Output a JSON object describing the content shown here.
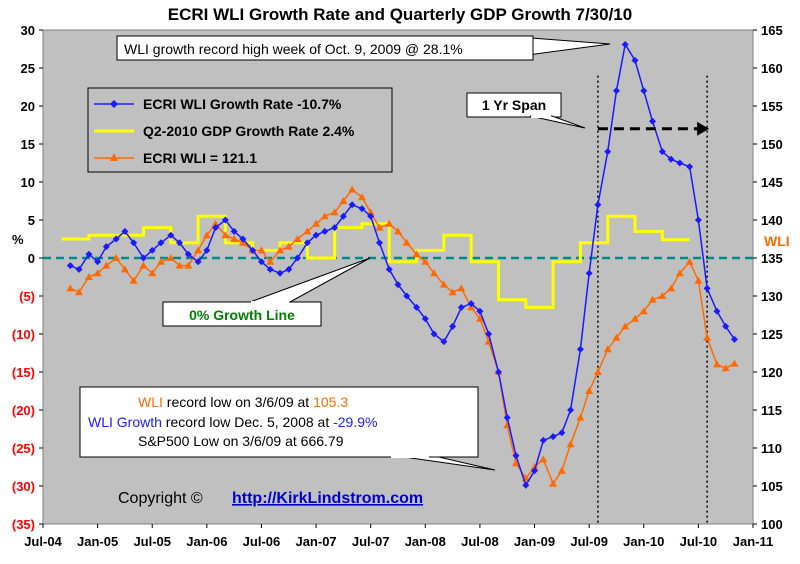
{
  "chart_data": {
    "type": "line",
    "title": "ECRI WLI Growth Rate and Quarterly GDP Growth  7/30/10",
    "ylabel_left": "%",
    "ylabel_right": "WLI",
    "x_ticks": [
      "Jul-04",
      "Jan-05",
      "Jul-05",
      "Jan-06",
      "Jul-06",
      "Jan-07",
      "Jul-07",
      "Jan-08",
      "Jul-08",
      "Jan-09",
      "Jul-09",
      "Jan-10",
      "Jul-10",
      "Jan-11"
    ],
    "xlim": [
      2004.5,
      2011.0
    ],
    "y_left_ticks": [
      "30",
      "25",
      "20",
      "15",
      "10",
      "5",
      "0",
      "(5)",
      "(10)",
      "(15)",
      "(20)",
      "(25)",
      "(30)",
      "(35)"
    ],
    "ylim_left": [
      -35,
      30
    ],
    "y_right_ticks": [
      "165",
      "160",
      "155",
      "150",
      "145",
      "140",
      "135",
      "130",
      "125",
      "120",
      "115",
      "110",
      "105",
      "100"
    ],
    "ylim_right": [
      100,
      165
    ],
    "grid": false,
    "legend_position": "top-left",
    "series": [
      {
        "name": "ECRI WLI Growth Rate -10.7%",
        "axis": "left",
        "color": "#1a1aff",
        "marker": "diamond",
        "points": [
          [
            2004.75,
            -1
          ],
          [
            2004.83,
            -1.5
          ],
          [
            2004.92,
            0.5
          ],
          [
            2005.0,
            -0.5
          ],
          [
            2005.08,
            1.5
          ],
          [
            2005.17,
            2.5
          ],
          [
            2005.25,
            3.5
          ],
          [
            2005.33,
            2
          ],
          [
            2005.42,
            0
          ],
          [
            2005.5,
            1
          ],
          [
            2005.58,
            2
          ],
          [
            2005.67,
            3
          ],
          [
            2005.75,
            2
          ],
          [
            2005.83,
            0.5
          ],
          [
            2005.92,
            -0.5
          ],
          [
            2006.0,
            1
          ],
          [
            2006.08,
            4
          ],
          [
            2006.17,
            5
          ],
          [
            2006.25,
            3.5
          ],
          [
            2006.33,
            2.5
          ],
          [
            2006.42,
            1
          ],
          [
            2006.5,
            -0.5
          ],
          [
            2006.58,
            -1.5
          ],
          [
            2006.67,
            -2
          ],
          [
            2006.75,
            -1.5
          ],
          [
            2006.83,
            0
          ],
          [
            2006.92,
            2
          ],
          [
            2007.0,
            3
          ],
          [
            2007.08,
            3.5
          ],
          [
            2007.17,
            4
          ],
          [
            2007.25,
            5.5
          ],
          [
            2007.33,
            7
          ],
          [
            2007.42,
            6.5
          ],
          [
            2007.5,
            5.5
          ],
          [
            2007.58,
            2
          ],
          [
            2007.67,
            -1.5
          ],
          [
            2007.75,
            -3.5
          ],
          [
            2007.83,
            -5
          ],
          [
            2007.92,
            -6.5
          ],
          [
            2008.0,
            -8
          ],
          [
            2008.08,
            -10
          ],
          [
            2008.17,
            -11
          ],
          [
            2008.25,
            -9
          ],
          [
            2008.33,
            -6.5
          ],
          [
            2008.42,
            -6
          ],
          [
            2008.5,
            -7
          ],
          [
            2008.58,
            -10
          ],
          [
            2008.67,
            -15
          ],
          [
            2008.75,
            -21
          ],
          [
            2008.83,
            -26
          ],
          [
            2008.92,
            -29.9
          ],
          [
            2009.0,
            -28
          ],
          [
            2009.08,
            -24
          ],
          [
            2009.17,
            -23.5
          ],
          [
            2009.25,
            -23
          ],
          [
            2009.33,
            -20
          ],
          [
            2009.42,
            -12
          ],
          [
            2009.5,
            -2
          ],
          [
            2009.58,
            7
          ],
          [
            2009.67,
            14
          ],
          [
            2009.75,
            22
          ],
          [
            2009.83,
            28.1
          ],
          [
            2009.92,
            26
          ],
          [
            2010.0,
            22
          ],
          [
            2010.08,
            18
          ],
          [
            2010.17,
            14
          ],
          [
            2010.25,
            13
          ],
          [
            2010.33,
            12.5
          ],
          [
            2010.42,
            12
          ],
          [
            2010.5,
            5
          ],
          [
            2010.58,
            -4
          ],
          [
            2010.67,
            -7
          ],
          [
            2010.75,
            -9
          ],
          [
            2010.83,
            -10.7
          ]
        ]
      },
      {
        "name": "Q2-2010 GDP Growth Rate 2.4%",
        "axis": "left",
        "color": "#ffff00",
        "points": [
          [
            2004.67,
            2.5
          ],
          [
            2004.92,
            2.5
          ],
          [
            2004.92,
            3
          ],
          [
            2005.42,
            3
          ],
          [
            2005.42,
            4
          ],
          [
            2005.67,
            4
          ],
          [
            2005.67,
            2
          ],
          [
            2005.92,
            2
          ],
          [
            2005.92,
            5.5
          ],
          [
            2006.17,
            5.5
          ],
          [
            2006.17,
            2
          ],
          [
            2006.42,
            2
          ],
          [
            2006.42,
            1
          ],
          [
            2006.67,
            1
          ],
          [
            2006.67,
            2
          ],
          [
            2006.92,
            2
          ],
          [
            2006.92,
            0
          ],
          [
            2007.17,
            0
          ],
          [
            2007.17,
            4
          ],
          [
            2007.42,
            4
          ],
          [
            2007.42,
            4.5
          ],
          [
            2007.67,
            4.5
          ],
          [
            2007.67,
            -0.5
          ],
          [
            2007.92,
            -0.5
          ],
          [
            2007.92,
            1
          ],
          [
            2008.17,
            1
          ],
          [
            2008.17,
            3
          ],
          [
            2008.42,
            3
          ],
          [
            2008.42,
            -0.5
          ],
          [
            2008.67,
            -0.5
          ],
          [
            2008.67,
            -5.5
          ],
          [
            2008.92,
            -5.5
          ],
          [
            2008.92,
            -6.5
          ],
          [
            2009.17,
            -6.5
          ],
          [
            2009.17,
            -0.5
          ],
          [
            2009.42,
            -0.5
          ],
          [
            2009.42,
            2
          ],
          [
            2009.67,
            2
          ],
          [
            2009.67,
            5.5
          ],
          [
            2009.92,
            5.5
          ],
          [
            2009.92,
            3.5
          ],
          [
            2010.17,
            3.5
          ],
          [
            2010.17,
            2.4
          ],
          [
            2010.42,
            2.4
          ]
        ]
      },
      {
        "name": "ECRI WLI = 121.1",
        "axis": "right",
        "color": "#ff6a00",
        "marker": "triangle",
        "points": [
          [
            2004.75,
            131
          ],
          [
            2004.83,
            130.5
          ],
          [
            2004.92,
            132.5
          ],
          [
            2005.0,
            133
          ],
          [
            2005.08,
            134
          ],
          [
            2005.17,
            135
          ],
          [
            2005.25,
            133.5
          ],
          [
            2005.33,
            132
          ],
          [
            2005.42,
            134
          ],
          [
            2005.5,
            133
          ],
          [
            2005.58,
            134.5
          ],
          [
            2005.67,
            135
          ],
          [
            2005.75,
            134
          ],
          [
            2005.83,
            134
          ],
          [
            2005.92,
            136
          ],
          [
            2006.0,
            138
          ],
          [
            2006.08,
            139.5
          ],
          [
            2006.17,
            138
          ],
          [
            2006.25,
            137.5
          ],
          [
            2006.33,
            137
          ],
          [
            2006.42,
            136
          ],
          [
            2006.5,
            136
          ],
          [
            2006.58,
            134.5
          ],
          [
            2006.67,
            136
          ],
          [
            2006.75,
            136.5
          ],
          [
            2006.83,
            137.5
          ],
          [
            2006.92,
            138.5
          ],
          [
            2007.0,
            139.5
          ],
          [
            2007.08,
            140.5
          ],
          [
            2007.17,
            141
          ],
          [
            2007.25,
            142.5
          ],
          [
            2007.33,
            144
          ],
          [
            2007.42,
            143
          ],
          [
            2007.5,
            141
          ],
          [
            2007.58,
            139
          ],
          [
            2007.67,
            139.5
          ],
          [
            2007.75,
            138.5
          ],
          [
            2007.83,
            137
          ],
          [
            2007.92,
            135.5
          ],
          [
            2008.0,
            134.5
          ],
          [
            2008.08,
            133
          ],
          [
            2008.17,
            131.5
          ],
          [
            2008.25,
            130.5
          ],
          [
            2008.33,
            131
          ],
          [
            2008.42,
            128.5
          ],
          [
            2008.5,
            127
          ],
          [
            2008.58,
            124
          ],
          [
            2008.67,
            120
          ],
          [
            2008.75,
            113
          ],
          [
            2008.83,
            108
          ],
          [
            2008.92,
            106
          ],
          [
            2009.0,
            107.5
          ],
          [
            2009.08,
            108.5
          ],
          [
            2009.17,
            105.3
          ],
          [
            2009.25,
            107
          ],
          [
            2009.33,
            110.5
          ],
          [
            2009.42,
            114
          ],
          [
            2009.5,
            117.5
          ],
          [
            2009.58,
            120
          ],
          [
            2009.67,
            123
          ],
          [
            2009.75,
            124.5
          ],
          [
            2009.83,
            126
          ],
          [
            2009.92,
            127
          ],
          [
            2010.0,
            128
          ],
          [
            2010.08,
            129.5
          ],
          [
            2010.17,
            130
          ],
          [
            2010.25,
            131
          ],
          [
            2010.33,
            133
          ],
          [
            2010.42,
            134.5
          ],
          [
            2010.5,
            132
          ],
          [
            2010.58,
            124.5
          ],
          [
            2010.67,
            121
          ],
          [
            2010.75,
            120.5
          ],
          [
            2010.83,
            121.1
          ]
        ]
      }
    ],
    "reference_line": {
      "label": "0%  Growth Line",
      "value": 0,
      "color": "#008b8b",
      "label_color": "#008000"
    },
    "span_annotation": {
      "label": "1 Yr Span",
      "x_start": 2009.58,
      "x_end": 2010.58,
      "arrow_y": 17
    },
    "annotations": {
      "record_high": "WLI growth record high week of Oct. 9, 2009 @ 28.1%",
      "wli_low_label": "WLI",
      "wli_low_text": " record low on 3/6/09 at ",
      "wli_low_value": "105.3",
      "growth_low_label": "WLI Growth",
      "growth_low_text": " record low Dec. 5, 2008 at ",
      "growth_low_value": "-29.9%",
      "sp500_low": "S&P500 Low on 3/6/09 at 666.79"
    },
    "copyright_text": "Copyright ©",
    "copyright_link": "http://KirkLindstrom.com"
  },
  "colors": {
    "plot_bg": "#c0c0c0",
    "wli_growth": "#1a1aff",
    "gdp": "#ffff00",
    "wli": "#ff6a00",
    "zero_line": "#008b8b",
    "link": "#0000cc"
  }
}
